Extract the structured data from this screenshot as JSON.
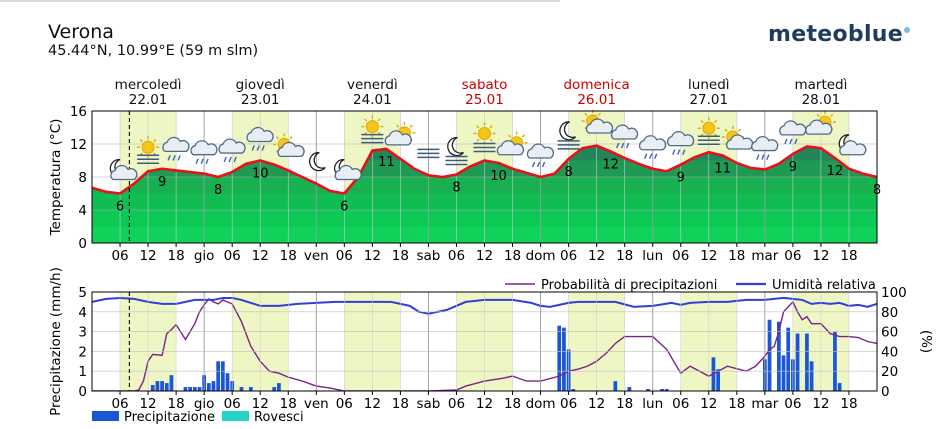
{
  "header": {
    "location": "Verona",
    "coordinates": "45.44°N, 10.99°E (59 m slm)",
    "brand": "meteoblue"
  },
  "days": [
    {
      "name": "mercoledì",
      "date": "22.01",
      "weekend": false
    },
    {
      "name": "giovedì",
      "date": "23.01",
      "weekend": false
    },
    {
      "name": "venerdì",
      "date": "24.01",
      "weekend": false
    },
    {
      "name": "sabato",
      "date": "25.01",
      "weekend": true
    },
    {
      "name": "domenica",
      "date": "26.01",
      "weekend": true
    },
    {
      "name": "lunedì",
      "date": "27.01",
      "weekend": false
    },
    {
      "name": "martedì",
      "date": "28.01",
      "weekend": false
    }
  ],
  "hour_tick_labels": [
    "06",
    "12",
    "18",
    "gio",
    "06",
    "12",
    "18",
    "ven",
    "06",
    "12",
    "18",
    "sab",
    "06",
    "12",
    "18",
    "dom",
    "06",
    "12",
    "18",
    "lun",
    "06",
    "12",
    "18",
    "mar",
    "06",
    "12",
    "18"
  ],
  "colors": {
    "weekend_text": "#cc0000",
    "day_band": "#eef6c4",
    "temperature_line": "#e8101a",
    "precip_prob_line": "#7b2388",
    "humidity_line": "#2f3fd8",
    "precipitation_bar": "#1a56d6",
    "showers_bar": "#22d3c8"
  },
  "weather_icons": [
    "moon-cloud",
    "sun-haze",
    "cloud-rain",
    "cloud-rain",
    "cloud-rain",
    "cloud-rain",
    "cloud-sun",
    "moon",
    "moon-cloud",
    "sun-haze",
    "sun-cloud",
    "fog",
    "moon-fog",
    "sun-fog",
    "sun-cloud",
    "cloud-rain",
    "moon-fog",
    "cloud-sun",
    "cloud-rain",
    "cloud-rain",
    "cloud-rain",
    "sun-haze",
    "cloud-sun",
    "cloud-rain",
    "cloud-rain",
    "sun-cloud",
    "moon-cloud"
  ],
  "chart_data": [
    {
      "type": "area",
      "ylabel": "Temperatura (°C)",
      "ylim": [
        0,
        16
      ],
      "yticks": [
        0,
        4,
        8,
        12,
        16
      ],
      "x_unit": "hours from 22.01 00:00",
      "xlim": [
        0,
        168
      ],
      "grid": true,
      "series": [
        {
          "x": [
            0,
            3,
            6,
            9,
            12,
            15,
            18,
            21,
            24,
            27,
            30,
            33,
            36,
            39,
            42,
            45,
            48,
            51,
            54,
            57,
            60,
            63,
            66,
            69,
            72,
            75,
            78,
            81,
            84,
            87,
            90,
            93,
            96,
            99,
            102,
            105,
            108,
            111,
            114,
            117,
            120,
            123,
            126,
            129,
            132,
            135,
            138,
            141,
            144,
            147,
            150,
            153,
            156,
            159,
            162,
            165,
            168
          ],
          "y": [
            6.7,
            6.2,
            6.0,
            7.2,
            8.7,
            9.0,
            8.8,
            8.6,
            8.4,
            8.0,
            8.6,
            9.6,
            10.0,
            9.5,
            8.8,
            8.0,
            7.2,
            6.3,
            6.0,
            8.0,
            11.2,
            11.4,
            10.2,
            9.0,
            8.2,
            8.0,
            8.3,
            9.3,
            10.0,
            9.7,
            9.0,
            8.5,
            8.0,
            8.4,
            10.2,
            11.5,
            11.8,
            11.1,
            10.3,
            9.6,
            9.0,
            8.7,
            9.5,
            10.4,
            11.0,
            10.6,
            9.7,
            9.1,
            8.9,
            9.6,
            10.8,
            11.7,
            11.5,
            10.3,
            9.0,
            8.4,
            8.0
          ]
        }
      ],
      "annotations": [
        {
          "x": 6,
          "label": "6"
        },
        {
          "x": 15,
          "label": "9"
        },
        {
          "x": 27,
          "label": "8"
        },
        {
          "x": 36,
          "label": "10"
        },
        {
          "x": 54,
          "label": "6"
        },
        {
          "x": 63,
          "label": "11"
        },
        {
          "x": 78,
          "label": "8"
        },
        {
          "x": 87,
          "label": "10"
        },
        {
          "x": 102,
          "label": "8"
        },
        {
          "x": 111,
          "label": "12"
        },
        {
          "x": 126,
          "label": "9"
        },
        {
          "x": 135,
          "label": "11"
        },
        {
          "x": 150,
          "label": "9"
        },
        {
          "x": 159,
          "label": "12"
        },
        {
          "x": 168,
          "label": "8"
        }
      ],
      "now_marker_x": 8
    },
    {
      "type": "bar",
      "ylabel": "Precipitazione (mm/h)",
      "y2label": "(%)",
      "ylim": [
        0,
        5
      ],
      "yticks": [
        0,
        1,
        2,
        3,
        4,
        5
      ],
      "y2lim": [
        0,
        100
      ],
      "y2ticks": [
        0,
        20,
        40,
        60,
        80,
        100
      ],
      "x_unit": "hours from 22.01 00:00",
      "xlim": [
        0,
        168
      ],
      "grid": true,
      "legend": [
        "Probabilità di precipitazioni",
        "Umidità relativa",
        "Precipitazione",
        "Rovesci"
      ],
      "precipitation": {
        "x": [
          13,
          14,
          15,
          16,
          17,
          20,
          21,
          22,
          23,
          24,
          25,
          26,
          27,
          28,
          29,
          30,
          32,
          34,
          39,
          40,
          100,
          101,
          102,
          103,
          112,
          115,
          119,
          122,
          123,
          133,
          134,
          144,
          145,
          147,
          148,
          149,
          150,
          151,
          153,
          154,
          159,
          160
        ],
        "y": [
          0.3,
          0.5,
          0.5,
          0.4,
          0.8,
          0.2,
          0.2,
          0.2,
          0.2,
          0.8,
          0.4,
          0.5,
          1.5,
          1.5,
          0.9,
          0.5,
          0.2,
          0.2,
          0.2,
          0.4,
          3.3,
          3.2,
          2.1,
          0.1,
          0.5,
          0.2,
          0.1,
          0.1,
          0.1,
          1.7,
          1.1,
          1.6,
          3.6,
          3.5,
          1.8,
          3.2,
          1.6,
          2.9,
          2.9,
          1.5,
          3.0,
          0.4
        ]
      },
      "showers": {
        "x": [],
        "y": []
      },
      "precipitation_probability": {
        "x": [
          0,
          3,
          6,
          9,
          10,
          11,
          12,
          13,
          15,
          16,
          17,
          18,
          20,
          21,
          22,
          23,
          24,
          25,
          26,
          27,
          28,
          30,
          32,
          34,
          36,
          38,
          40,
          42,
          45,
          48,
          51,
          54,
          57,
          60,
          66,
          72,
          78,
          80,
          84,
          88,
          90,
          93,
          96,
          100,
          102,
          104,
          106,
          108,
          110,
          112,
          114,
          120,
          123,
          126,
          128,
          132,
          136,
          140,
          142,
          144,
          145,
          146,
          147,
          148,
          149,
          150,
          151,
          152,
          153,
          154,
          156,
          158,
          160,
          162,
          164,
          166,
          168
        ],
        "y": [
          0,
          0,
          0,
          0,
          1,
          10,
          30,
          37,
          36,
          58,
          62,
          67,
          52,
          60,
          68,
          80,
          87,
          93,
          90,
          88,
          92,
          88,
          70,
          45,
          30,
          20,
          18,
          14,
          10,
          5,
          3,
          0,
          0,
          0,
          0,
          0,
          1,
          5,
          10,
          13,
          15,
          10,
          10,
          15,
          20,
          22,
          25,
          30,
          38,
          48,
          55,
          55,
          42,
          18,
          25,
          15,
          25,
          20,
          25,
          35,
          42,
          45,
          60,
          80,
          85,
          90,
          80,
          72,
          75,
          68,
          68,
          58,
          55,
          55,
          54,
          50,
          48
        ]
      },
      "relative_humidity": {
        "x": [
          0,
          3,
          6,
          9,
          12,
          15,
          18,
          20,
          22,
          24,
          26,
          28,
          30,
          32,
          36,
          40,
          44,
          48,
          52,
          56,
          60,
          64,
          68,
          70,
          72,
          76,
          80,
          84,
          90,
          94,
          96,
          98,
          100,
          102,
          104,
          108,
          112,
          116,
          120,
          124,
          126,
          128,
          132,
          136,
          140,
          144,
          146,
          148,
          150,
          152,
          154,
          156,
          158,
          160,
          162,
          164,
          166,
          168
        ],
        "y": [
          90,
          93,
          94,
          93,
          90,
          88,
          88,
          90,
          92,
          92,
          92,
          94,
          94,
          92,
          86,
          86,
          88,
          89,
          90,
          90,
          90,
          90,
          86,
          80,
          78,
          82,
          90,
          92,
          92,
          89,
          86,
          85,
          87,
          89,
          90,
          90,
          90,
          85,
          86,
          89,
          87,
          89,
          90,
          90,
          92,
          92,
          93,
          94,
          93,
          92,
          88,
          89,
          88,
          89,
          86,
          87,
          85,
          88
        ]
      }
    }
  ]
}
